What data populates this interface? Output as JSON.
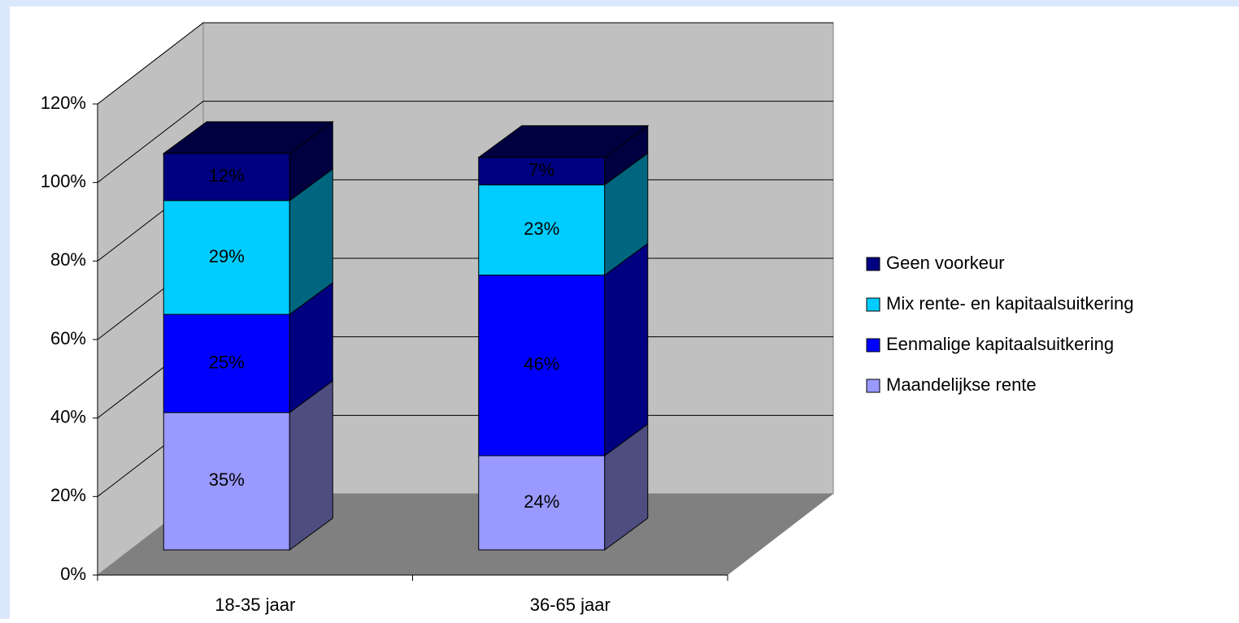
{
  "chart_data": {
    "type": "bar3d_stacked",
    "categories": [
      "18-35 jaar",
      "36-65 jaar"
    ],
    "series": [
      {
        "name": "Maandelijkse rente",
        "color": "#9999ff",
        "values": [
          35,
          24
        ],
        "value_labels": [
          "35%",
          "24%"
        ]
      },
      {
        "name": "Eenmalige kapitaalsuitkering",
        "color": "#0000ff",
        "values": [
          25,
          46
        ],
        "value_labels": [
          "25%",
          "46%"
        ]
      },
      {
        "name": "Mix rente- en kapitaalsuitkering",
        "color": "#00ccff",
        "values": [
          29,
          23
        ],
        "value_labels": [
          "29%",
          "23%"
        ]
      },
      {
        "name": "Geen voorkeur",
        "color": "#000080",
        "values": [
          12,
          7
        ],
        "value_labels": [
          "12%",
          "7%"
        ]
      }
    ],
    "ylim": [
      0,
      120
    ],
    "yticks": [
      {
        "value": 0,
        "label": "0%"
      },
      {
        "value": 20,
        "label": "20%"
      },
      {
        "value": 40,
        "label": "40%"
      },
      {
        "value": 60,
        "label": "60%"
      },
      {
        "value": 80,
        "label": "80%"
      },
      {
        "value": 100,
        "label": "100%"
      },
      {
        "value": 120,
        "label": "120%"
      }
    ],
    "grid": true,
    "legend": "right"
  }
}
